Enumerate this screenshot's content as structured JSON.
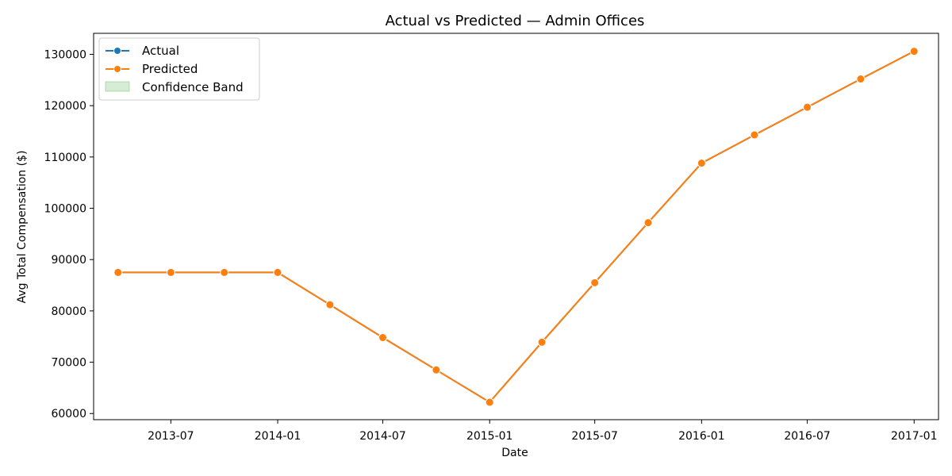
{
  "chart_data": {
    "type": "line",
    "title": "Actual vs Predicted — Admin Offices",
    "xlabel": "Date",
    "ylabel": "Avg Total Compensation ($)",
    "x": [
      "2013-04-01",
      "2013-07-01",
      "2013-10-01",
      "2014-01-01",
      "2014-04-01",
      "2014-07-01",
      "2014-10-01",
      "2015-01-01",
      "2015-04-01",
      "2015-07-01",
      "2015-10-01",
      "2016-01-01",
      "2016-04-01",
      "2016-07-01",
      "2016-10-01",
      "2017-01-01"
    ],
    "x_ticks": [
      "2013-07",
      "2014-01",
      "2014-07",
      "2015-01",
      "2015-07",
      "2016-01",
      "2016-07",
      "2017-01"
    ],
    "y_ticks": [
      60000,
      70000,
      80000,
      90000,
      100000,
      110000,
      120000,
      130000
    ],
    "ylim": [
      58800,
      134100
    ],
    "xlim": [
      "2013-02-18",
      "2017-02-12"
    ],
    "series": [
      {
        "name": "Actual",
        "color": "#1f77b4",
        "values": [
          87500,
          87500,
          87500,
          87500,
          81200,
          74800,
          68500,
          62200,
          73900,
          85500,
          97200,
          108800,
          114300,
          119700,
          125200,
          130600
        ]
      },
      {
        "name": "Predicted",
        "color": "#ff7f0e",
        "values": [
          87500,
          87500,
          87500,
          87500,
          81200,
          74800,
          68500,
          62200,
          73900,
          85500,
          97200,
          108800,
          114300,
          119700,
          125200,
          130600
        ]
      }
    ],
    "band": {
      "name": "Confidence Band",
      "color": "#2ca02c"
    },
    "legend": "top-left",
    "grid": false
  }
}
